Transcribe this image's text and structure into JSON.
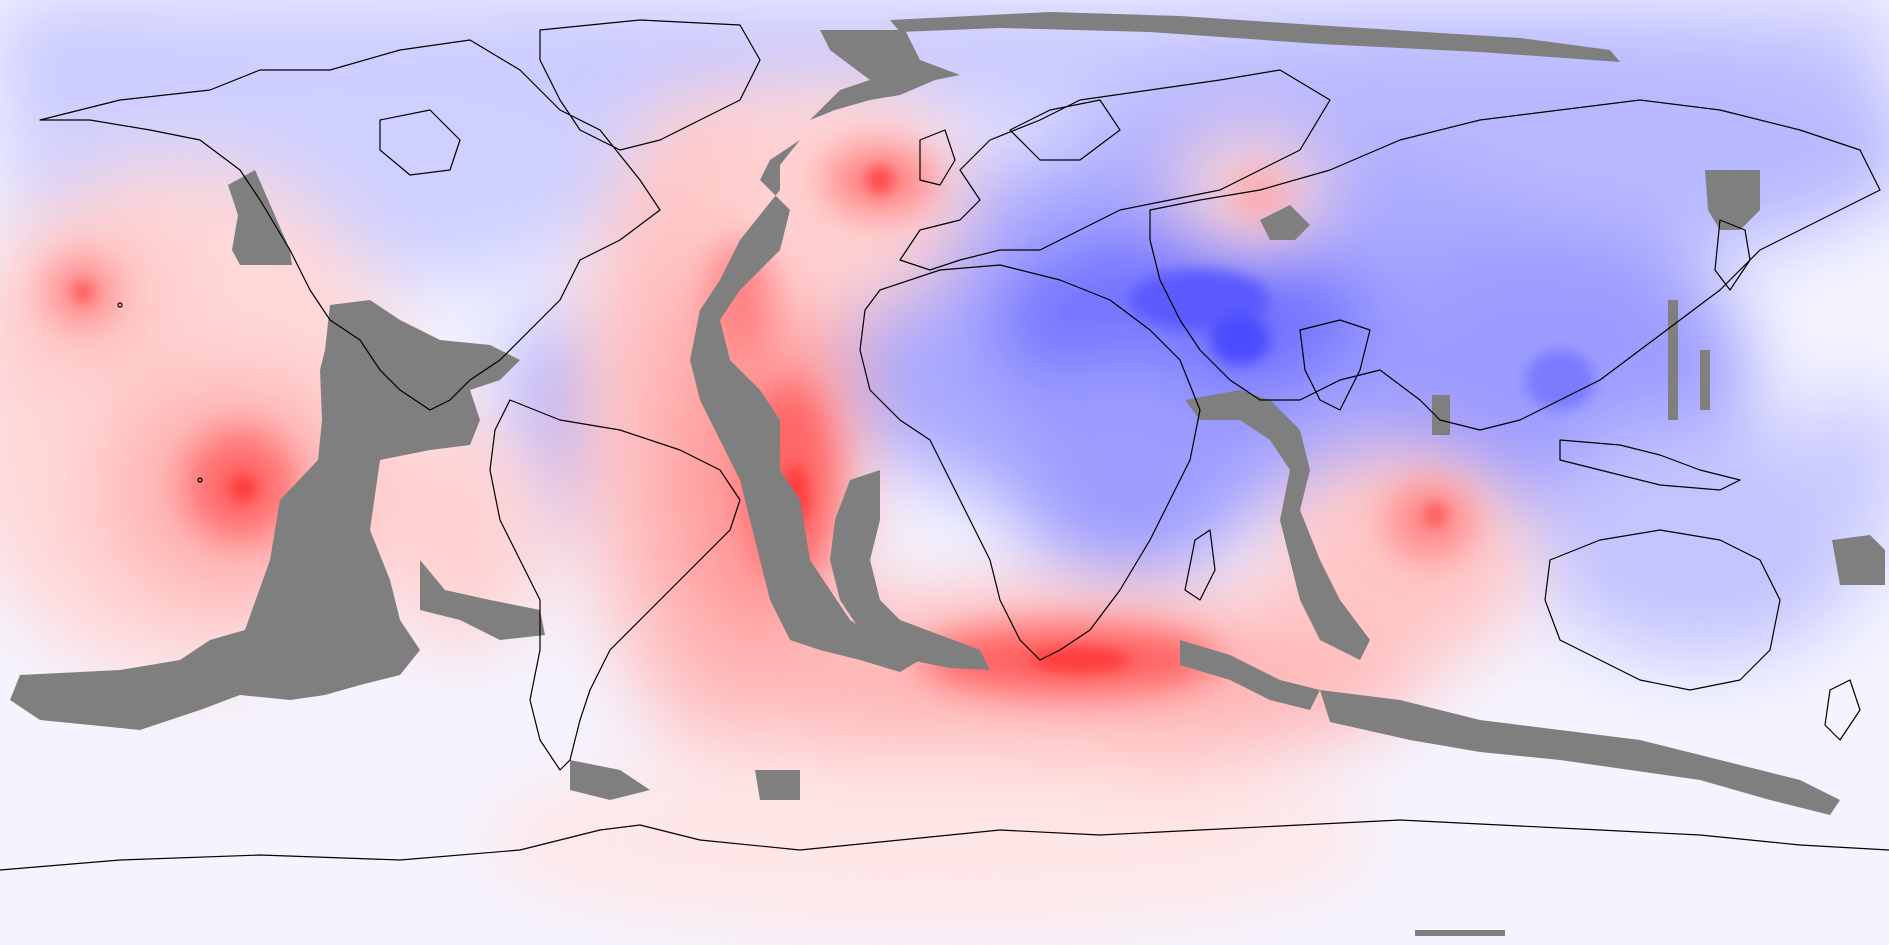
{
  "map": {
    "projection": "equirectangular",
    "extent": "global",
    "palette": {
      "strong_red": "#ff3030",
      "red": "#ff7a7a",
      "light_red": "#ffc6c6",
      "pale_red": "#ffeaea",
      "near_white": "#f4f4ff",
      "pale_blue": "#dcdcff",
      "light_blue": "#b9b9ff",
      "blue": "#8a8aff",
      "strong_blue": "#5656ff",
      "mask_gray": "#7f7f7f",
      "coastline": "#000000"
    },
    "layers": [
      "diverging-contour-field",
      "gray-ridge-mask",
      "coastlines"
    ]
  }
}
